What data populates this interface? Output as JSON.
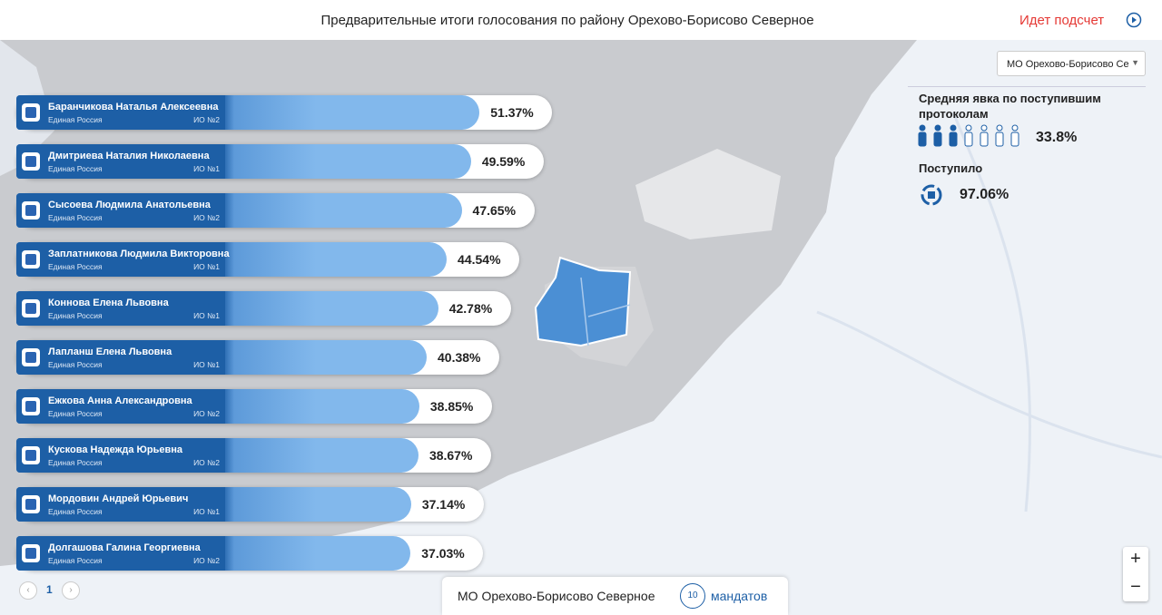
{
  "header": {
    "title": "Предварительные итоги голосования по району Орехово-Борисово Северное",
    "status": "Идет подсчет"
  },
  "district_select": "МО Орехово-Борисово Севе",
  "turnout": {
    "label": "Средняя явка по поступившим протоколам",
    "value": "33.8%"
  },
  "received": {
    "label": "Поступило",
    "value": "97.06%"
  },
  "candidates": [
    {
      "name": "Баранчикова Наталья Алексеевна",
      "party": "Единая Россия",
      "district": "ИО №2",
      "value": 51.37,
      "value_label": "51.37%"
    },
    {
      "name": "Дмитриева Наталия Николаевна",
      "party": "Единая Россия",
      "district": "ИО №1",
      "value": 49.59,
      "value_label": "49.59%"
    },
    {
      "name": "Сысоева Людмила Анатольевна",
      "party": "Единая Россия",
      "district": "ИО №2",
      "value": 47.65,
      "value_label": "47.65%"
    },
    {
      "name": "Заплатникова Людмила Викторовна",
      "party": "Единая Россия",
      "district": "ИО №1",
      "value": 44.54,
      "value_label": "44.54%"
    },
    {
      "name": "Коннова Елена Львовна",
      "party": "Единая Россия",
      "district": "ИО №1",
      "value": 42.78,
      "value_label": "42.78%"
    },
    {
      "name": "Лапланш Елена Львовна",
      "party": "Единая Россия",
      "district": "ИО №1",
      "value": 40.38,
      "value_label": "40.38%"
    },
    {
      "name": "Ежкова Анна Александровна",
      "party": "Единая Россия",
      "district": "ИО №2",
      "value": 38.85,
      "value_label": "38.85%"
    },
    {
      "name": "Кускова Надежда Юрьевна",
      "party": "Единая Россия",
      "district": "ИО №2",
      "value": 38.67,
      "value_label": "38.67%"
    },
    {
      "name": "Мордовин Андрей Юрьевич",
      "party": "Единая Россия",
      "district": "ИО №1",
      "value": 37.14,
      "value_label": "37.14%"
    },
    {
      "name": "Долгашова Галина Георгиевна",
      "party": "Единая Россия",
      "district": "ИО №2",
      "value": 37.03,
      "value_label": "37.03%"
    }
  ],
  "pagination": {
    "page": "1"
  },
  "zoom": {
    "in": "+",
    "out": "−"
  },
  "footer": {
    "district": "МО Орехово-Борисово Северное",
    "mandates": "10",
    "mandates_label": "мандатов"
  }
}
